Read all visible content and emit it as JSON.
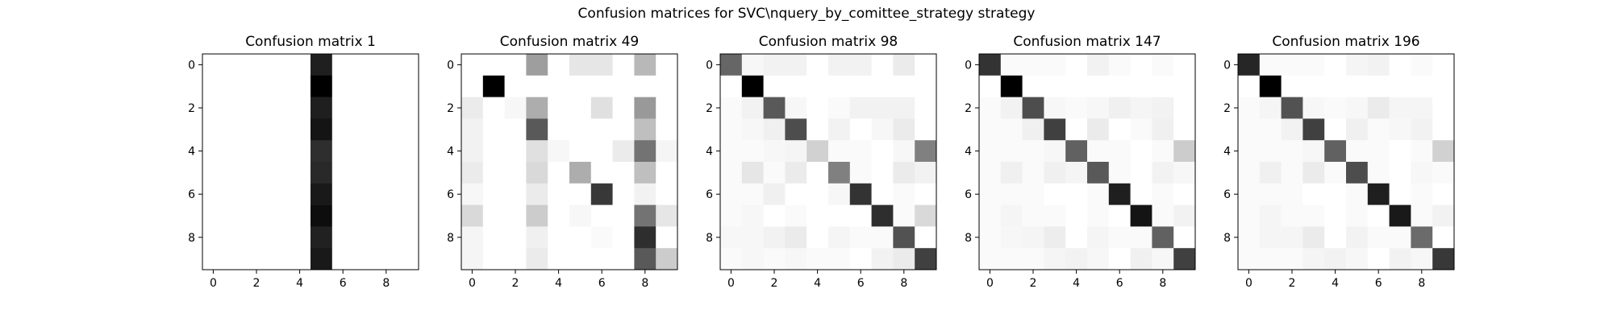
{
  "figure": {
    "suptitle": "Confusion matrices for SVC\\nquery_by_comittee_strategy strategy"
  },
  "chart_data": [
    {
      "type": "heatmap",
      "title": "Confusion matrix 1",
      "x_ticks": [
        "0",
        "2",
        "4",
        "6",
        "8"
      ],
      "y_ticks": [
        "0",
        "2",
        "4",
        "6",
        "8"
      ],
      "colormap": "Greys",
      "values": [
        [
          0,
          0,
          0,
          0,
          0,
          0.88,
          0,
          0,
          0,
          0
        ],
        [
          0,
          0,
          0,
          0,
          0,
          1.0,
          0,
          0,
          0,
          0
        ],
        [
          0,
          0,
          0,
          0,
          0,
          0.88,
          0,
          0,
          0,
          0
        ],
        [
          0,
          0,
          0,
          0,
          0,
          0.92,
          0,
          0,
          0,
          0
        ],
        [
          0,
          0,
          0,
          0,
          0,
          0.82,
          0,
          0,
          0,
          0
        ],
        [
          0,
          0,
          0,
          0,
          0,
          0.84,
          0,
          0,
          0,
          0
        ],
        [
          0,
          0,
          0,
          0,
          0,
          0.9,
          0,
          0,
          0,
          0
        ],
        [
          0,
          0,
          0,
          0,
          0,
          0.95,
          0,
          0,
          0,
          0
        ],
        [
          0,
          0,
          0,
          0,
          0,
          0.87,
          0,
          0,
          0,
          0
        ],
        [
          0,
          0,
          0,
          0,
          0,
          0.9,
          0,
          0,
          0,
          0
        ]
      ]
    },
    {
      "type": "heatmap",
      "title": "Confusion matrix 49",
      "x_ticks": [
        "0",
        "2",
        "4",
        "6",
        "8"
      ],
      "y_ticks": [
        "0",
        "2",
        "4",
        "6",
        "8"
      ],
      "colormap": "Greys",
      "values": [
        [
          0,
          0,
          0,
          0.38,
          0,
          0.1,
          0.1,
          0,
          0.28,
          0
        ],
        [
          0,
          1.0,
          0,
          0,
          0,
          0,
          0,
          0,
          0,
          0
        ],
        [
          0.08,
          0,
          0.03,
          0.32,
          0,
          0,
          0.12,
          0,
          0.4,
          0
        ],
        [
          0.05,
          0,
          0,
          0.65,
          0,
          0,
          0,
          0,
          0.25,
          0
        ],
        [
          0.05,
          0,
          0,
          0.12,
          0.03,
          0,
          0,
          0.08,
          0.55,
          0.04
        ],
        [
          0.08,
          0,
          0,
          0.15,
          0,
          0.32,
          0,
          0,
          0.25,
          0
        ],
        [
          0.03,
          0,
          0,
          0.08,
          0,
          0,
          0.78,
          0,
          0.05,
          0
        ],
        [
          0.15,
          0,
          0,
          0.2,
          0,
          0.03,
          0,
          0,
          0.55,
          0.1
        ],
        [
          0.04,
          0,
          0,
          0.06,
          0,
          0,
          0.02,
          0,
          0.82,
          0
        ],
        [
          0.04,
          0,
          0,
          0.08,
          0,
          0,
          0,
          0,
          0.65,
          0.2
        ]
      ]
    },
    {
      "type": "heatmap",
      "title": "Confusion matrix 98",
      "x_ticks": [
        "0",
        "2",
        "4",
        "6",
        "8"
      ],
      "y_ticks": [
        "0",
        "2",
        "4",
        "6",
        "8"
      ],
      "colormap": "Greys",
      "values": [
        [
          0.6,
          0.03,
          0.05,
          0.05,
          0,
          0.05,
          0.05,
          0,
          0.08,
          0
        ],
        [
          0,
          1.0,
          0,
          0,
          0,
          0,
          0,
          0,
          0,
          0
        ],
        [
          0.02,
          0.05,
          0.65,
          0.03,
          0,
          0.02,
          0.05,
          0.05,
          0.05,
          0
        ],
        [
          0.02,
          0.03,
          0.06,
          0.7,
          0,
          0.05,
          0,
          0.03,
          0.08,
          0
        ],
        [
          0.02,
          0.02,
          0.03,
          0.04,
          0.18,
          0.02,
          0.02,
          0,
          0.03,
          0.5
        ],
        [
          0.02,
          0.1,
          0.02,
          0.08,
          0,
          0.5,
          0.02,
          0,
          0.08,
          0.05
        ],
        [
          0.02,
          0.02,
          0.06,
          0,
          0,
          0.03,
          0.8,
          0,
          0.02,
          0
        ],
        [
          0.02,
          0.03,
          0,
          0.02,
          0,
          0,
          0,
          0.82,
          0.02,
          0.15
        ],
        [
          0.03,
          0.03,
          0.05,
          0.08,
          0,
          0.04,
          0.02,
          0.02,
          0.68,
          0
        ],
        [
          0.02,
          0.03,
          0.02,
          0.03,
          0.02,
          0.02,
          0,
          0.05,
          0.08,
          0.75
        ]
      ]
    },
    {
      "type": "heatmap",
      "title": "Confusion matrix 147",
      "x_ticks": [
        "0",
        "2",
        "4",
        "6",
        "8"
      ],
      "y_ticks": [
        "0",
        "2",
        "4",
        "6",
        "8"
      ],
      "colormap": "Greys",
      "values": [
        [
          0.8,
          0.02,
          0.02,
          0.02,
          0,
          0.05,
          0.02,
          0,
          0.02,
          0
        ],
        [
          0,
          1.0,
          0,
          0,
          0,
          0,
          0,
          0,
          0,
          0
        ],
        [
          0.02,
          0.05,
          0.7,
          0.03,
          0.02,
          0.03,
          0.06,
          0.04,
          0.05,
          0
        ],
        [
          0.02,
          0.02,
          0.06,
          0.75,
          0,
          0.08,
          0,
          0.02,
          0.06,
          0
        ],
        [
          0.02,
          0.02,
          0.02,
          0.03,
          0.62,
          0.02,
          0.02,
          0,
          0.02,
          0.2
        ],
        [
          0.02,
          0.06,
          0.02,
          0.06,
          0.04,
          0.65,
          0.02,
          0,
          0.05,
          0.03
        ],
        [
          0.02,
          0.02,
          0.02,
          0,
          0,
          0.02,
          0.88,
          0,
          0.02,
          0
        ],
        [
          0.02,
          0.04,
          0.02,
          0.02,
          0,
          0.02,
          0,
          0.92,
          0.02,
          0.05
        ],
        [
          0.02,
          0.03,
          0.04,
          0.07,
          0,
          0.04,
          0.02,
          0.02,
          0.62,
          0
        ],
        [
          0.02,
          0.02,
          0.02,
          0.04,
          0.05,
          0.03,
          0,
          0.06,
          0.03,
          0.75
        ]
      ]
    },
    {
      "type": "heatmap",
      "title": "Confusion matrix 196",
      "x_ticks": [
        "0",
        "2",
        "4",
        "6",
        "8"
      ],
      "y_ticks": [
        "0",
        "2",
        "4",
        "6",
        "8"
      ],
      "colormap": "Greys",
      "values": [
        [
          0.85,
          0.02,
          0.02,
          0.02,
          0,
          0.04,
          0.05,
          0,
          0.02,
          0
        ],
        [
          0,
          1.0,
          0,
          0,
          0,
          0,
          0,
          0,
          0,
          0
        ],
        [
          0.02,
          0.04,
          0.68,
          0.03,
          0.02,
          0.03,
          0.08,
          0.04,
          0.04,
          0
        ],
        [
          0.02,
          0.02,
          0.05,
          0.75,
          0,
          0.06,
          0.02,
          0.03,
          0.05,
          0
        ],
        [
          0.02,
          0.02,
          0.02,
          0.03,
          0.62,
          0.02,
          0.02,
          0,
          0.02,
          0.18
        ],
        [
          0.02,
          0.06,
          0.02,
          0.08,
          0.02,
          0.7,
          0.02,
          0,
          0.03,
          0.02
        ],
        [
          0.02,
          0.02,
          0.02,
          0,
          0,
          0.02,
          0.88,
          0,
          0.02,
          0
        ],
        [
          0.02,
          0.04,
          0.02,
          0.02,
          0,
          0.02,
          0,
          0.9,
          0.02,
          0.05
        ],
        [
          0.02,
          0.04,
          0.04,
          0.08,
          0,
          0.05,
          0.02,
          0.02,
          0.58,
          0
        ],
        [
          0.02,
          0.02,
          0.02,
          0.04,
          0.05,
          0.03,
          0,
          0.05,
          0.03,
          0.78
        ]
      ]
    }
  ]
}
